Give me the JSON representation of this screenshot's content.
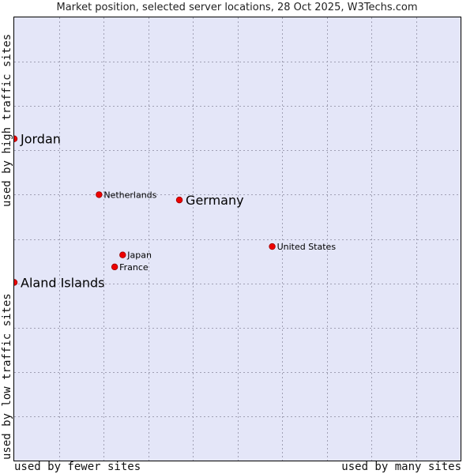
{
  "chart_data": {
    "type": "scatter",
    "title": "Market position, selected server locations, 28 Oct 2025, W3Techs.com",
    "x_axis": {
      "low_label": "used by fewer sites",
      "high_label": "used by many sites",
      "range": [
        0,
        100
      ]
    },
    "y_axis": {
      "low_label": "used by low traffic sites",
      "high_label": "used by high traffic sites",
      "range": [
        0,
        100
      ]
    },
    "grid": true,
    "points": [
      {
        "name": "Jordan",
        "x": 0.0,
        "y": 72.6,
        "emphasis": true
      },
      {
        "name": "Netherlands",
        "x": 19.0,
        "y": 60.0,
        "emphasis": false
      },
      {
        "name": "Germany",
        "x": 37.0,
        "y": 58.8,
        "emphasis": true
      },
      {
        "name": "United States",
        "x": 57.8,
        "y": 48.3,
        "emphasis": false
      },
      {
        "name": "Japan",
        "x": 24.3,
        "y": 46.4,
        "emphasis": false
      },
      {
        "name": "France",
        "x": 22.5,
        "y": 43.7,
        "emphasis": false
      },
      {
        "name": "Aland Islands",
        "x": 0.0,
        "y": 40.2,
        "emphasis": true
      }
    ],
    "colors": {
      "marker": "#ee0000",
      "marker_edge": "#990000",
      "plot_bg": "#e4e6f8",
      "grid": "#a0a0b4"
    }
  }
}
